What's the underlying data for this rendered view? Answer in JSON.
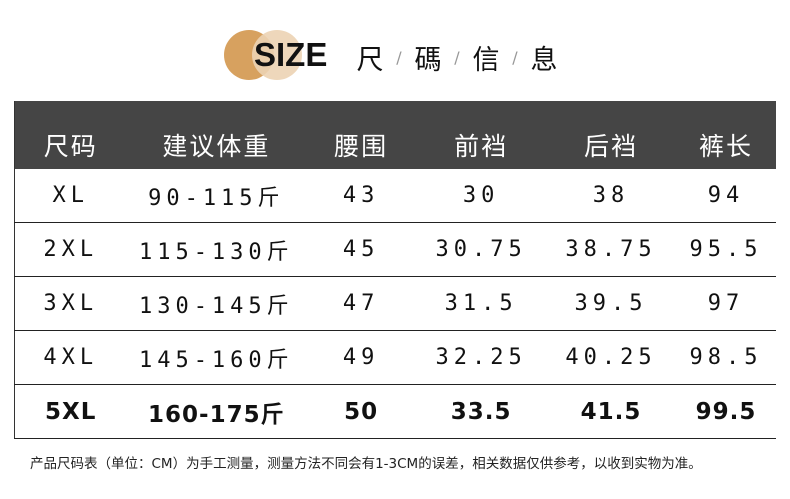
{
  "title": {
    "size_word": "SIZE",
    "chinese_chars": [
      "尺",
      "碼",
      "信",
      "息"
    ],
    "separator": "/",
    "circle_colors": [
      "#d7a15f",
      "#ecd3b4"
    ]
  },
  "table": {
    "header_bg": "#454545",
    "headers": [
      "尺码",
      "建议体重",
      "腰围",
      "前裆",
      "后裆",
      "裤长"
    ],
    "rows": [
      [
        "XL",
        "90-115斤",
        "43",
        "30",
        "38",
        "94"
      ],
      [
        "2XL",
        "115-130斤",
        "45",
        "30.75",
        "38.75",
        "95.5"
      ],
      [
        "3XL",
        "130-145斤",
        "47",
        "31.5",
        "39.5",
        "97"
      ],
      [
        "4XL",
        "145-160斤",
        "49",
        "32.25",
        "40.25",
        "98.5"
      ],
      [
        "5XL",
        "160-175斤",
        "50",
        "33.5",
        "41.5",
        "99.5"
      ]
    ]
  },
  "note": "产品尺码表（单位：CM）为手工测量，测量方法不同会有1-3CM的误差，相关数据仅供参考，以收到实物为准。"
}
